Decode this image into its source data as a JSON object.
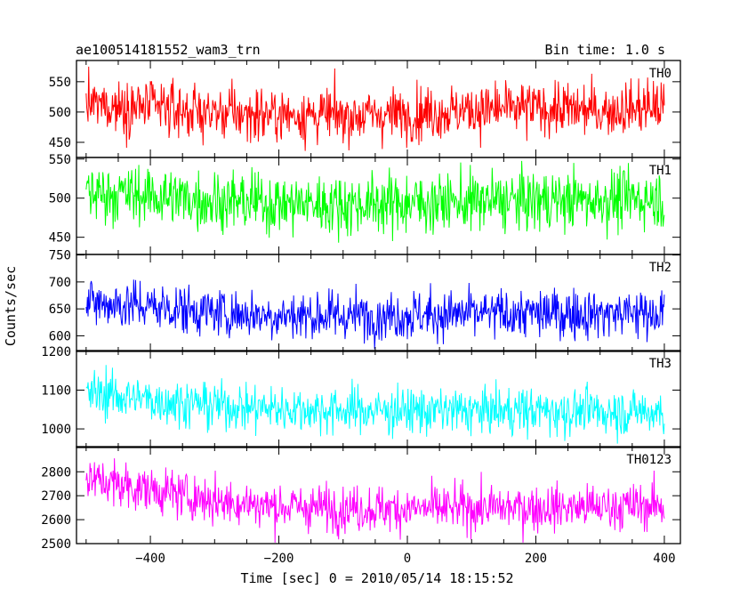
{
  "chart_data": {
    "type": "line",
    "title": "ae100514181552_wam3_trn",
    "subtitle": "Bin time: 1.0 s",
    "xlabel": "Time [sec] 0 = 2010/05/14 18:15:52",
    "ylabel": "Counts/sec",
    "xlim": [
      -515,
      425
    ],
    "x_range": [
      -500,
      400
    ],
    "x_step": 1,
    "x_ticks": [
      -400,
      -200,
      0,
      200,
      400
    ],
    "x_tick_labels": [
      "−400",
      "−200",
      "0",
      "200",
      "400"
    ],
    "grid": false,
    "series": [
      {
        "name": "TH0",
        "color": "#ff0000",
        "ylim": [
          425,
          585
        ],
        "y_ticks": [
          450,
          500,
          550
        ],
        "y_tick_labels": [
          "450",
          "500",
          "550"
        ],
        "mean_profile": [
          [
            -500,
            512
          ],
          [
            -400,
            508
          ],
          [
            -300,
            498
          ],
          [
            -200,
            496
          ],
          [
            -100,
            494
          ],
          [
            0,
            497
          ],
          [
            100,
            503
          ],
          [
            200,
            506
          ],
          [
            300,
            502
          ],
          [
            400,
            510
          ]
        ],
        "noise_sd": 22
      },
      {
        "name": "TH1",
        "color": "#00ff00",
        "ylim": [
          428,
          552
        ],
        "y_ticks": [
          450,
          500,
          550
        ],
        "y_tick_labels": [
          "450",
          "500",
          "550"
        ],
        "mean_profile": [
          [
            -500,
            508
          ],
          [
            -400,
            503
          ],
          [
            -300,
            497
          ],
          [
            -200,
            493
          ],
          [
            -100,
            492
          ],
          [
            0,
            494
          ],
          [
            100,
            495
          ],
          [
            200,
            497
          ],
          [
            300,
            498
          ],
          [
            400,
            500
          ]
        ],
        "noise_sd": 19
      },
      {
        "name": "TH2",
        "color": "#0000ff",
        "ylim": [
          571,
          751
        ],
        "y_ticks": [
          600,
          650,
          700,
          750
        ],
        "y_tick_labels": [
          "600",
          "650",
          "700",
          "750"
        ],
        "mean_profile": [
          [
            -500,
            662
          ],
          [
            -400,
            655
          ],
          [
            -300,
            643
          ],
          [
            -200,
            638
          ],
          [
            -100,
            637
          ],
          [
            0,
            639
          ],
          [
            100,
            640
          ],
          [
            200,
            641
          ],
          [
            300,
            642
          ],
          [
            400,
            643
          ]
        ],
        "noise_sd": 23
      },
      {
        "name": "TH3",
        "color": "#00ffff",
        "ylim": [
          952,
          1202
        ],
        "y_ticks": [
          1000,
          1100,
          1200
        ],
        "y_tick_labels": [
          "1000",
          "1100",
          "1200"
        ],
        "mean_profile": [
          [
            -500,
            1095
          ],
          [
            -400,
            1075
          ],
          [
            -300,
            1060
          ],
          [
            -200,
            1052
          ],
          [
            -100,
            1048
          ],
          [
            0,
            1047
          ],
          [
            100,
            1046
          ],
          [
            200,
            1047
          ],
          [
            300,
            1045
          ],
          [
            400,
            1044
          ]
        ],
        "noise_sd": 30
      },
      {
        "name": "TH0123",
        "color": "#ff00ff",
        "ylim": [
          2500,
          2905
        ],
        "y_ticks": [
          2500,
          2600,
          2700,
          2800
        ],
        "y_tick_labels": [
          "2500",
          "2600",
          "2700",
          "2800"
        ],
        "mean_profile": [
          [
            -500,
            2770
          ],
          [
            -400,
            2725
          ],
          [
            -300,
            2680
          ],
          [
            -200,
            2655
          ],
          [
            -100,
            2648
          ],
          [
            0,
            2645
          ],
          [
            100,
            2648
          ],
          [
            200,
            2650
          ],
          [
            300,
            2652
          ],
          [
            400,
            2660
          ]
        ],
        "noise_sd": 48
      }
    ]
  }
}
